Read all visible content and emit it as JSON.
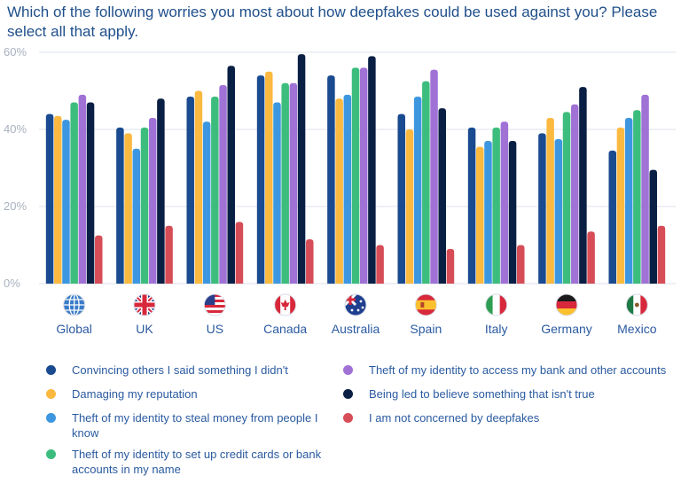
{
  "title": "Which of the following worries you most about how deepfakes could be used against you? Please select all that apply.",
  "chart_data": {
    "type": "bar",
    "title": "Which of the following worries you most about how deepfakes could be used against you? Please select all that apply.",
    "xlabel": "",
    "ylabel": "",
    "ylim": [
      0,
      60
    ],
    "yticks": [
      "0%",
      "20%",
      "40%",
      "60%"
    ],
    "grid": true,
    "legend_position": "bottom",
    "categories": [
      "Global",
      "UK",
      "US",
      "Canada",
      "Australia",
      "Spain",
      "Italy",
      "Germany",
      "Mexico"
    ],
    "flags": [
      "globe-icon",
      "uk-flag-icon",
      "us-flag-icon",
      "canada-flag-icon",
      "australia-flag-icon",
      "spain-flag-icon",
      "italy-flag-icon",
      "germany-flag-icon",
      "mexico-flag-icon"
    ],
    "series": [
      {
        "name": "Convincing others I said something I didn't",
        "color": "#1a4a8f",
        "values": [
          44,
          40.5,
          48.5,
          54,
          54,
          44,
          40.5,
          39,
          34.5
        ]
      },
      {
        "name": "Damaging my reputation",
        "color": "#fbb940",
        "values": [
          43.5,
          39,
          50,
          55,
          48,
          40,
          35.5,
          43,
          40.5
        ]
      },
      {
        "name": "Theft of my identity to steal money from people I know",
        "color": "#3d97e0",
        "values": [
          42.5,
          35,
          42,
          47,
          49,
          48.5,
          37,
          37.5,
          43
        ]
      },
      {
        "name": "Theft of my identity to set up credit cards or bank accounts in my name",
        "color": "#3dbd7d",
        "values": [
          47,
          40.5,
          48.5,
          52,
          56,
          52.5,
          40.5,
          44.5,
          45
        ]
      },
      {
        "name": "Theft of my identity to access my bank and other accounts",
        "color": "#a072d6",
        "values": [
          49,
          43,
          51.5,
          52,
          56,
          55.5,
          42,
          46.5,
          49
        ]
      },
      {
        "name": "Being led to believe something that isn't true",
        "color": "#0a1f44",
        "values": [
          47,
          48,
          56.5,
          59.5,
          59,
          45.5,
          37,
          51,
          29.5
        ]
      },
      {
        "name": "I am not concerned by deepfakes",
        "color": "#d64d57",
        "values": [
          12.5,
          15,
          16,
          11.5,
          10,
          9,
          10,
          13.5,
          15
        ]
      }
    ]
  }
}
